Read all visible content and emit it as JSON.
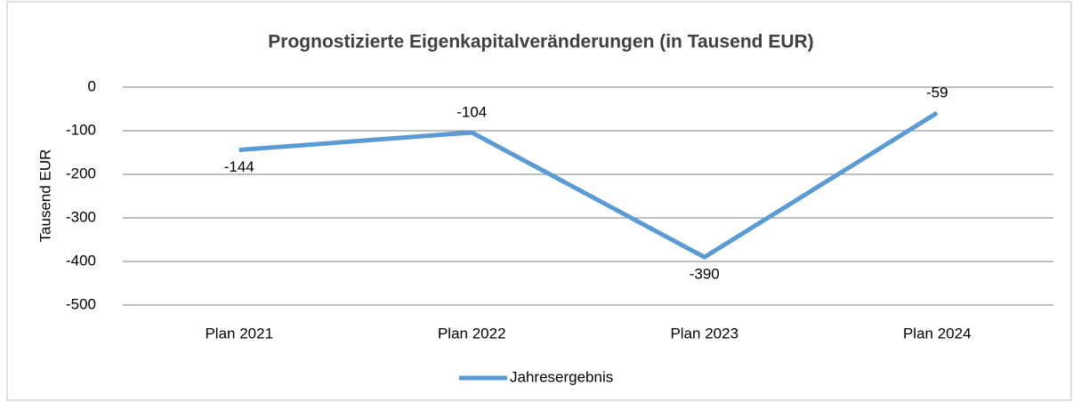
{
  "chart_data": {
    "type": "line",
    "title": "Prognostizierte Eigenkapitalveränderungen (in Tausend EUR)",
    "y_label": "Tausend EUR",
    "categories": [
      "Plan 2021",
      "Plan 2022",
      "Plan 2023",
      "Plan 2024"
    ],
    "series": [
      {
        "name": "Jahresergebnis",
        "color": "#5b9bd5",
        "values": [
          -144,
          -104,
          -390,
          -59
        ]
      }
    ],
    "ylim": [
      -500,
      0
    ],
    "yticks": [
      -500,
      -400,
      -300,
      -200,
      -100,
      0
    ],
    "grid": true,
    "legend": "bottom"
  }
}
